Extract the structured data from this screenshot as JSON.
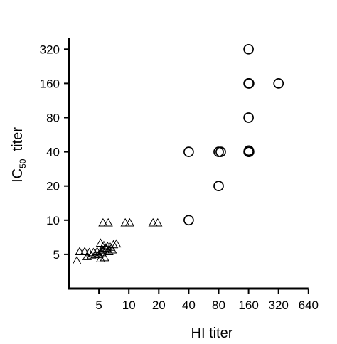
{
  "chart_data": {
    "type": "scatter",
    "xlabel": "HI titer",
    "ylabel": {
      "main": "IC",
      "subscript": "50",
      "suffix": "titer"
    },
    "x_scale": "log2",
    "y_scale": "log2",
    "xlim": [
      2.5,
      640
    ],
    "ylim": [
      2.5,
      400
    ],
    "x_ticks": [
      5,
      10,
      20,
      40,
      80,
      160,
      320,
      640
    ],
    "y_ticks": [
      5,
      10,
      20,
      40,
      80,
      160,
      320
    ],
    "grid": false,
    "legend": "none",
    "series": [
      {
        "marker": "triangle",
        "points": [
          [
            5.5,
            9.5
          ],
          [
            6.2,
            9.5
          ],
          [
            9.2,
            9.5
          ],
          [
            10.2,
            9.5
          ],
          [
            17.5,
            9.5
          ],
          [
            19.5,
            9.5
          ],
          [
            3.2,
            5.3
          ],
          [
            3.6,
            5.3
          ],
          [
            4.0,
            5.2
          ],
          [
            4.4,
            5.2
          ],
          [
            4.8,
            5.3
          ],
          [
            5.3,
            5.2
          ],
          [
            3.8,
            4.8
          ],
          [
            4.2,
            4.9
          ],
          [
            4.6,
            5.0
          ],
          [
            5.0,
            5.0
          ],
          [
            5.5,
            5.4
          ],
          [
            6.0,
            5.6
          ],
          [
            6.5,
            5.8
          ],
          [
            7.0,
            6.1
          ],
          [
            7.5,
            6.2
          ],
          [
            5.6,
            6.0
          ],
          [
            6.1,
            5.9
          ],
          [
            5.4,
            5.5
          ],
          [
            5.8,
            5.7
          ],
          [
            3.0,
            4.4
          ],
          [
            5.2,
            4.6
          ],
          [
            5.7,
            4.7
          ],
          [
            6.3,
            5.3
          ],
          [
            6.8,
            5.5
          ],
          [
            5.2,
            6.3
          ]
        ]
      },
      {
        "marker": "circle",
        "points": [
          [
            40,
            40
          ],
          [
            40,
            10
          ],
          [
            80,
            40
          ],
          [
            84,
            40
          ],
          [
            80,
            20
          ],
          [
            160,
            320
          ],
          [
            160,
            160
          ],
          [
            162,
            160
          ],
          [
            160,
            80
          ],
          [
            160,
            40
          ],
          [
            161,
            41
          ],
          [
            162,
            40
          ],
          [
            320,
            160
          ]
        ]
      }
    ]
  }
}
